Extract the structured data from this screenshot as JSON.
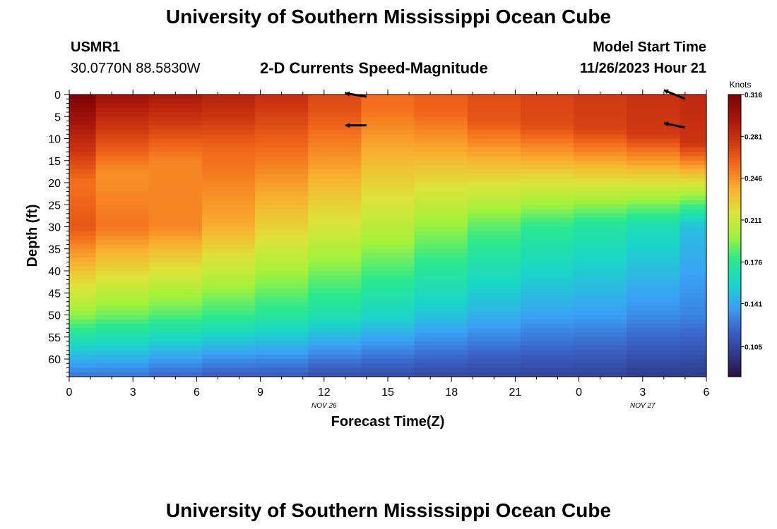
{
  "header": {
    "title": "University of Southern Mississippi Ocean Cube",
    "station_id": "USMR1",
    "coords": "30.0770N  88.5830W",
    "subtitle": "2-D Currents Speed-Magnitude",
    "model_start_label": "Model Start Time",
    "model_start_value": "11/26/2023 Hour 21"
  },
  "footer": {
    "title": "University of Southern Mississippi Ocean Cube"
  },
  "colors": {
    "colormap": [
      "#2b0f3f",
      "#2f3b8e",
      "#3b63c8",
      "#3aa2f5",
      "#1ad6c8",
      "#2be88e",
      "#a3f23a",
      "#dde33a",
      "#f9b030",
      "#f46d1c",
      "#cf3611",
      "#a6150a",
      "#7a0403"
    ],
    "arrow": "#000000"
  },
  "chart_data": {
    "type": "heatmap",
    "title": "2-D Currents Speed-Magnitude",
    "xlabel": "Forecast Time(Z)",
    "ylabel": "Depth (ft)",
    "x_hours": [
      0,
      3,
      6,
      9,
      12,
      15,
      18,
      21,
      24,
      27,
      30
    ],
    "x_tick_labels": [
      "0",
      "3",
      "6",
      "9",
      "12",
      "15",
      "18",
      "21",
      "0",
      "3",
      "6"
    ],
    "xlim": [
      0,
      30
    ],
    "date_labels": [
      {
        "text": "NOV 26",
        "hour": 12
      },
      {
        "text": "NOV 27",
        "hour": 27
      }
    ],
    "y_ticks": [
      0,
      5,
      10,
      15,
      20,
      25,
      30,
      35,
      40,
      45,
      50,
      55,
      60
    ],
    "ylim": [
      0,
      64
    ],
    "columns_hours": [
      0.0,
      2.5,
      5.0,
      7.5,
      10.0,
      12.5,
      15.0,
      17.5,
      20.0,
      22.5,
      25.0,
      27.5,
      30.0
    ],
    "columns": [
      {
        "hour": 0.0,
        "surface": 0.316,
        "mld": 20,
        "mid": 0.265,
        "d50": 0.195,
        "bottom": 0.125,
        "slope": 0.003
      },
      {
        "hour": 2.5,
        "surface": 0.3,
        "mld": 18,
        "mid": 0.255,
        "d50": 0.19,
        "bottom": 0.125,
        "slope": 0.003
      },
      {
        "hour": 5.0,
        "surface": 0.295,
        "mld": 15,
        "mid": 0.25,
        "d50": 0.185,
        "bottom": 0.12,
        "slope": 0.003
      },
      {
        "hour": 7.5,
        "surface": 0.29,
        "mld": 12,
        "mid": 0.238,
        "d50": 0.18,
        "bottom": 0.115,
        "slope": 0.0025
      },
      {
        "hour": 10.0,
        "surface": 0.282,
        "mld": 8,
        "mid": 0.225,
        "d50": 0.175,
        "bottom": 0.115,
        "slope": 0.002
      },
      {
        "hour": 12.5,
        "surface": 0.27,
        "mld": 4,
        "mid": 0.215,
        "d50": 0.168,
        "bottom": 0.11,
        "slope": 0.001
      },
      {
        "hour": 15.0,
        "surface": 0.258,
        "mld": 3,
        "mid": 0.206,
        "d50": 0.16,
        "bottom": 0.108,
        "slope": 0.0005
      },
      {
        "hour": 17.5,
        "surface": 0.262,
        "mld": 4,
        "mid": 0.196,
        "d50": 0.152,
        "bottom": 0.106,
        "slope": 0.0005
      },
      {
        "hour": 20.0,
        "surface": 0.268,
        "mld": 6,
        "mid": 0.186,
        "d50": 0.145,
        "bottom": 0.105,
        "slope": 0.0005
      },
      {
        "hour": 22.5,
        "surface": 0.272,
        "mld": 7,
        "mid": 0.178,
        "d50": 0.14,
        "bottom": 0.104,
        "slope": 0.0005
      },
      {
        "hour": 25.0,
        "surface": 0.276,
        "mld": 8,
        "mid": 0.172,
        "d50": 0.138,
        "bottom": 0.103,
        "slope": 0.0005
      },
      {
        "hour": 27.5,
        "surface": 0.28,
        "mld": 9,
        "mid": 0.165,
        "d50": 0.133,
        "bottom": 0.1,
        "slope": 0.0005
      },
      {
        "hour": 30.0,
        "surface": 0.284,
        "mld": 11,
        "mid": 0.15,
        "d50": 0.13,
        "bottom": 0.1,
        "slope": 0.0005
      }
    ],
    "arrows": [
      {
        "hour": 14.0,
        "depth": 0.5,
        "dx_hours": -1.0,
        "ddepth": -0.8
      },
      {
        "hour": 14.0,
        "depth": 7.0,
        "dx_hours": -1.0,
        "ddepth": 0.0
      },
      {
        "hour": 29.0,
        "depth": 1.0,
        "dx_hours": -1.0,
        "ddepth": -2.0
      },
      {
        "hour": 29.0,
        "depth": 7.5,
        "dx_hours": -1.0,
        "ddepth": -1.0
      }
    ],
    "colorbar": {
      "label": "Knots",
      "min": 0.08,
      "max": 0.316,
      "ticks": [
        0.316,
        0.281,
        0.246,
        0.211,
        0.176,
        0.141,
        0.105
      ],
      "tick_labels": [
        "0.316",
        "0.281",
        "0.246",
        "0.211",
        "0.176",
        "0.141",
        "0.105"
      ]
    }
  }
}
